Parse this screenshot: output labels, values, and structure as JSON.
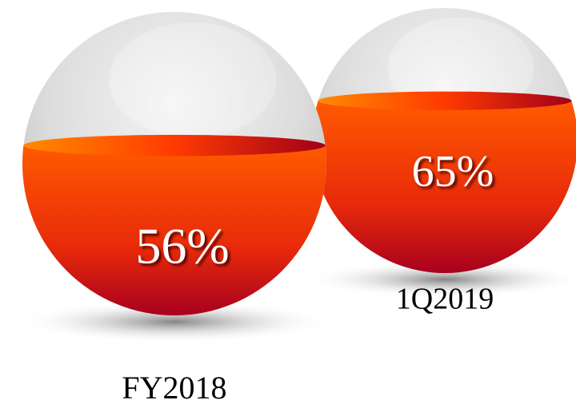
{
  "chart_data": {
    "type": "fill-sphere",
    "categories": [
      "FY2018",
      "1Q2019"
    ],
    "values": [
      56,
      65
    ],
    "value_labels": [
      "56%",
      "65%"
    ],
    "color": "#ff4a00"
  }
}
